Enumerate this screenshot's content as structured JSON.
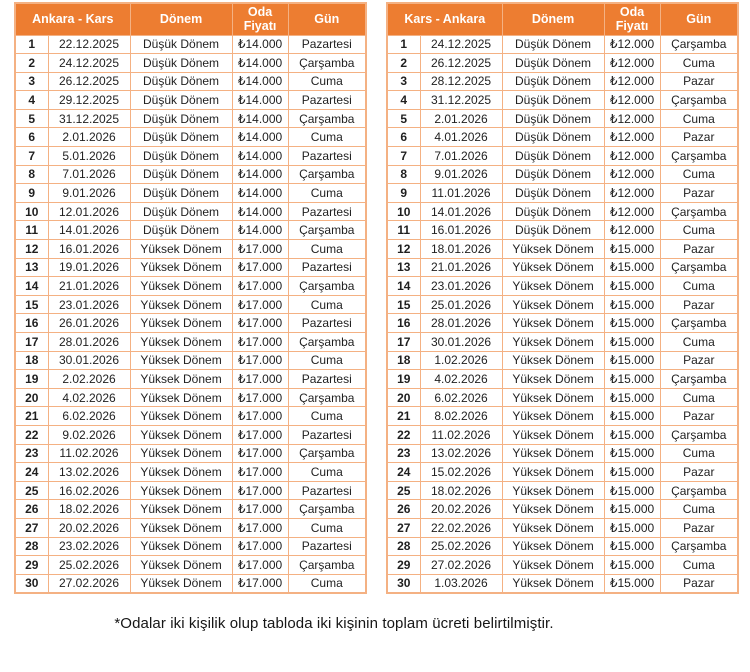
{
  "colors": {
    "header_bg": "#ED7D31",
    "header_text": "#FFFFFF",
    "border": "#F4B183",
    "text": "#1F1F1F"
  },
  "footnote": "*Odalar iki kişilik olup tabloda iki kişinin toplam ücreti belirtilmiştir.",
  "tables": [
    {
      "route_label": "Ankara - Kars",
      "columns": {
        "donem": "Dönem",
        "oda_fiyati": "Oda Fiyatı",
        "gun": "Gün"
      },
      "rows": [
        [
          "1",
          "22.12.2025",
          "Düşük Dönem",
          "₺14.000",
          "Pazartesi"
        ],
        [
          "2",
          "24.12.2025",
          "Düşük Dönem",
          "₺14.000",
          "Çarşamba"
        ],
        [
          "3",
          "26.12.2025",
          "Düşük Dönem",
          "₺14.000",
          "Cuma"
        ],
        [
          "4",
          "29.12.2025",
          "Düşük Dönem",
          "₺14.000",
          "Pazartesi"
        ],
        [
          "5",
          "31.12.2025",
          "Düşük Dönem",
          "₺14.000",
          "Çarşamba"
        ],
        [
          "6",
          "2.01.2026",
          "Düşük Dönem",
          "₺14.000",
          "Cuma"
        ],
        [
          "7",
          "5.01.2026",
          "Düşük Dönem",
          "₺14.000",
          "Pazartesi"
        ],
        [
          "8",
          "7.01.2026",
          "Düşük Dönem",
          "₺14.000",
          "Çarşamba"
        ],
        [
          "9",
          "9.01.2026",
          "Düşük Dönem",
          "₺14.000",
          "Cuma"
        ],
        [
          "10",
          "12.01.2026",
          "Düşük Dönem",
          "₺14.000",
          "Pazartesi"
        ],
        [
          "11",
          "14.01.2026",
          "Düşük Dönem",
          "₺14.000",
          "Çarşamba"
        ],
        [
          "12",
          "16.01.2026",
          "Yüksek Dönem",
          "₺17.000",
          "Cuma"
        ],
        [
          "13",
          "19.01.2026",
          "Yüksek Dönem",
          "₺17.000",
          "Pazartesi"
        ],
        [
          "14",
          "21.01.2026",
          "Yüksek Dönem",
          "₺17.000",
          "Çarşamba"
        ],
        [
          "15",
          "23.01.2026",
          "Yüksek Dönem",
          "₺17.000",
          "Cuma"
        ],
        [
          "16",
          "26.01.2026",
          "Yüksek Dönem",
          "₺17.000",
          "Pazartesi"
        ],
        [
          "17",
          "28.01.2026",
          "Yüksek Dönem",
          "₺17.000",
          "Çarşamba"
        ],
        [
          "18",
          "30.01.2026",
          "Yüksek Dönem",
          "₺17.000",
          "Cuma"
        ],
        [
          "19",
          "2.02.2026",
          "Yüksek Dönem",
          "₺17.000",
          "Pazartesi"
        ],
        [
          "20",
          "4.02.2026",
          "Yüksek Dönem",
          "₺17.000",
          "Çarşamba"
        ],
        [
          "21",
          "6.02.2026",
          "Yüksek Dönem",
          "₺17.000",
          "Cuma"
        ],
        [
          "22",
          "9.02.2026",
          "Yüksek Dönem",
          "₺17.000",
          "Pazartesi"
        ],
        [
          "23",
          "11.02.2026",
          "Yüksek Dönem",
          "₺17.000",
          "Çarşamba"
        ],
        [
          "24",
          "13.02.2026",
          "Yüksek Dönem",
          "₺17.000",
          "Cuma"
        ],
        [
          "25",
          "16.02.2026",
          "Yüksek Dönem",
          "₺17.000",
          "Pazartesi"
        ],
        [
          "26",
          "18.02.2026",
          "Yüksek Dönem",
          "₺17.000",
          "Çarşamba"
        ],
        [
          "27",
          "20.02.2026",
          "Yüksek Dönem",
          "₺17.000",
          "Cuma"
        ],
        [
          "28",
          "23.02.2026",
          "Yüksek Dönem",
          "₺17.000",
          "Pazartesi"
        ],
        [
          "29",
          "25.02.2026",
          "Yüksek Dönem",
          "₺17.000",
          "Çarşamba"
        ],
        [
          "30",
          "27.02.2026",
          "Yüksek Dönem",
          "₺17.000",
          "Cuma"
        ]
      ]
    },
    {
      "route_label": "Kars - Ankara",
      "columns": {
        "donem": "Dönem",
        "oda_fiyati": "Oda Fiyatı",
        "gun": "Gün"
      },
      "rows": [
        [
          "1",
          "24.12.2025",
          "Düşük Dönem",
          "₺12.000",
          "Çarşamba"
        ],
        [
          "2",
          "26.12.2025",
          "Düşük Dönem",
          "₺12.000",
          "Cuma"
        ],
        [
          "3",
          "28.12.2025",
          "Düşük Dönem",
          "₺12.000",
          "Pazar"
        ],
        [
          "4",
          "31.12.2025",
          "Düşük Dönem",
          "₺12.000",
          "Çarşamba"
        ],
        [
          "5",
          "2.01.2026",
          "Düşük Dönem",
          "₺12.000",
          "Cuma"
        ],
        [
          "6",
          "4.01.2026",
          "Düşük Dönem",
          "₺12.000",
          "Pazar"
        ],
        [
          "7",
          "7.01.2026",
          "Düşük Dönem",
          "₺12.000",
          "Çarşamba"
        ],
        [
          "8",
          "9.01.2026",
          "Düşük Dönem",
          "₺12.000",
          "Cuma"
        ],
        [
          "9",
          "11.01.2026",
          "Düşük Dönem",
          "₺12.000",
          "Pazar"
        ],
        [
          "10",
          "14.01.2026",
          "Düşük Dönem",
          "₺12.000",
          "Çarşamba"
        ],
        [
          "11",
          "16.01.2026",
          "Düşük Dönem",
          "₺12.000",
          "Cuma"
        ],
        [
          "12",
          "18.01.2026",
          "Yüksek Dönem",
          "₺15.000",
          "Pazar"
        ],
        [
          "13",
          "21.01.2026",
          "Yüksek Dönem",
          "₺15.000",
          "Çarşamba"
        ],
        [
          "14",
          "23.01.2026",
          "Yüksek Dönem",
          "₺15.000",
          "Cuma"
        ],
        [
          "15",
          "25.01.2026",
          "Yüksek Dönem",
          "₺15.000",
          "Pazar"
        ],
        [
          "16",
          "28.01.2026",
          "Yüksek Dönem",
          "₺15.000",
          "Çarşamba"
        ],
        [
          "17",
          "30.01.2026",
          "Yüksek Dönem",
          "₺15.000",
          "Cuma"
        ],
        [
          "18",
          "1.02.2026",
          "Yüksek Dönem",
          "₺15.000",
          "Pazar"
        ],
        [
          "19",
          "4.02.2026",
          "Yüksek Dönem",
          "₺15.000",
          "Çarşamba"
        ],
        [
          "20",
          "6.02.2026",
          "Yüksek Dönem",
          "₺15.000",
          "Cuma"
        ],
        [
          "21",
          "8.02.2026",
          "Yüksek Dönem",
          "₺15.000",
          "Pazar"
        ],
        [
          "22",
          "11.02.2026",
          "Yüksek Dönem",
          "₺15.000",
          "Çarşamba"
        ],
        [
          "23",
          "13.02.2026",
          "Yüksek Dönem",
          "₺15.000",
          "Cuma"
        ],
        [
          "24",
          "15.02.2026",
          "Yüksek Dönem",
          "₺15.000",
          "Pazar"
        ],
        [
          "25",
          "18.02.2026",
          "Yüksek Dönem",
          "₺15.000",
          "Çarşamba"
        ],
        [
          "26",
          "20.02.2026",
          "Yüksek Dönem",
          "₺15.000",
          "Cuma"
        ],
        [
          "27",
          "22.02.2026",
          "Yüksek Dönem",
          "₺15.000",
          "Pazar"
        ],
        [
          "28",
          "25.02.2026",
          "Yüksek Dönem",
          "₺15.000",
          "Çarşamba"
        ],
        [
          "29",
          "27.02.2026",
          "Yüksek Dönem",
          "₺15.000",
          "Cuma"
        ],
        [
          "30",
          "1.03.2026",
          "Yüksek Dönem",
          "₺15.000",
          "Pazar"
        ]
      ]
    }
  ]
}
